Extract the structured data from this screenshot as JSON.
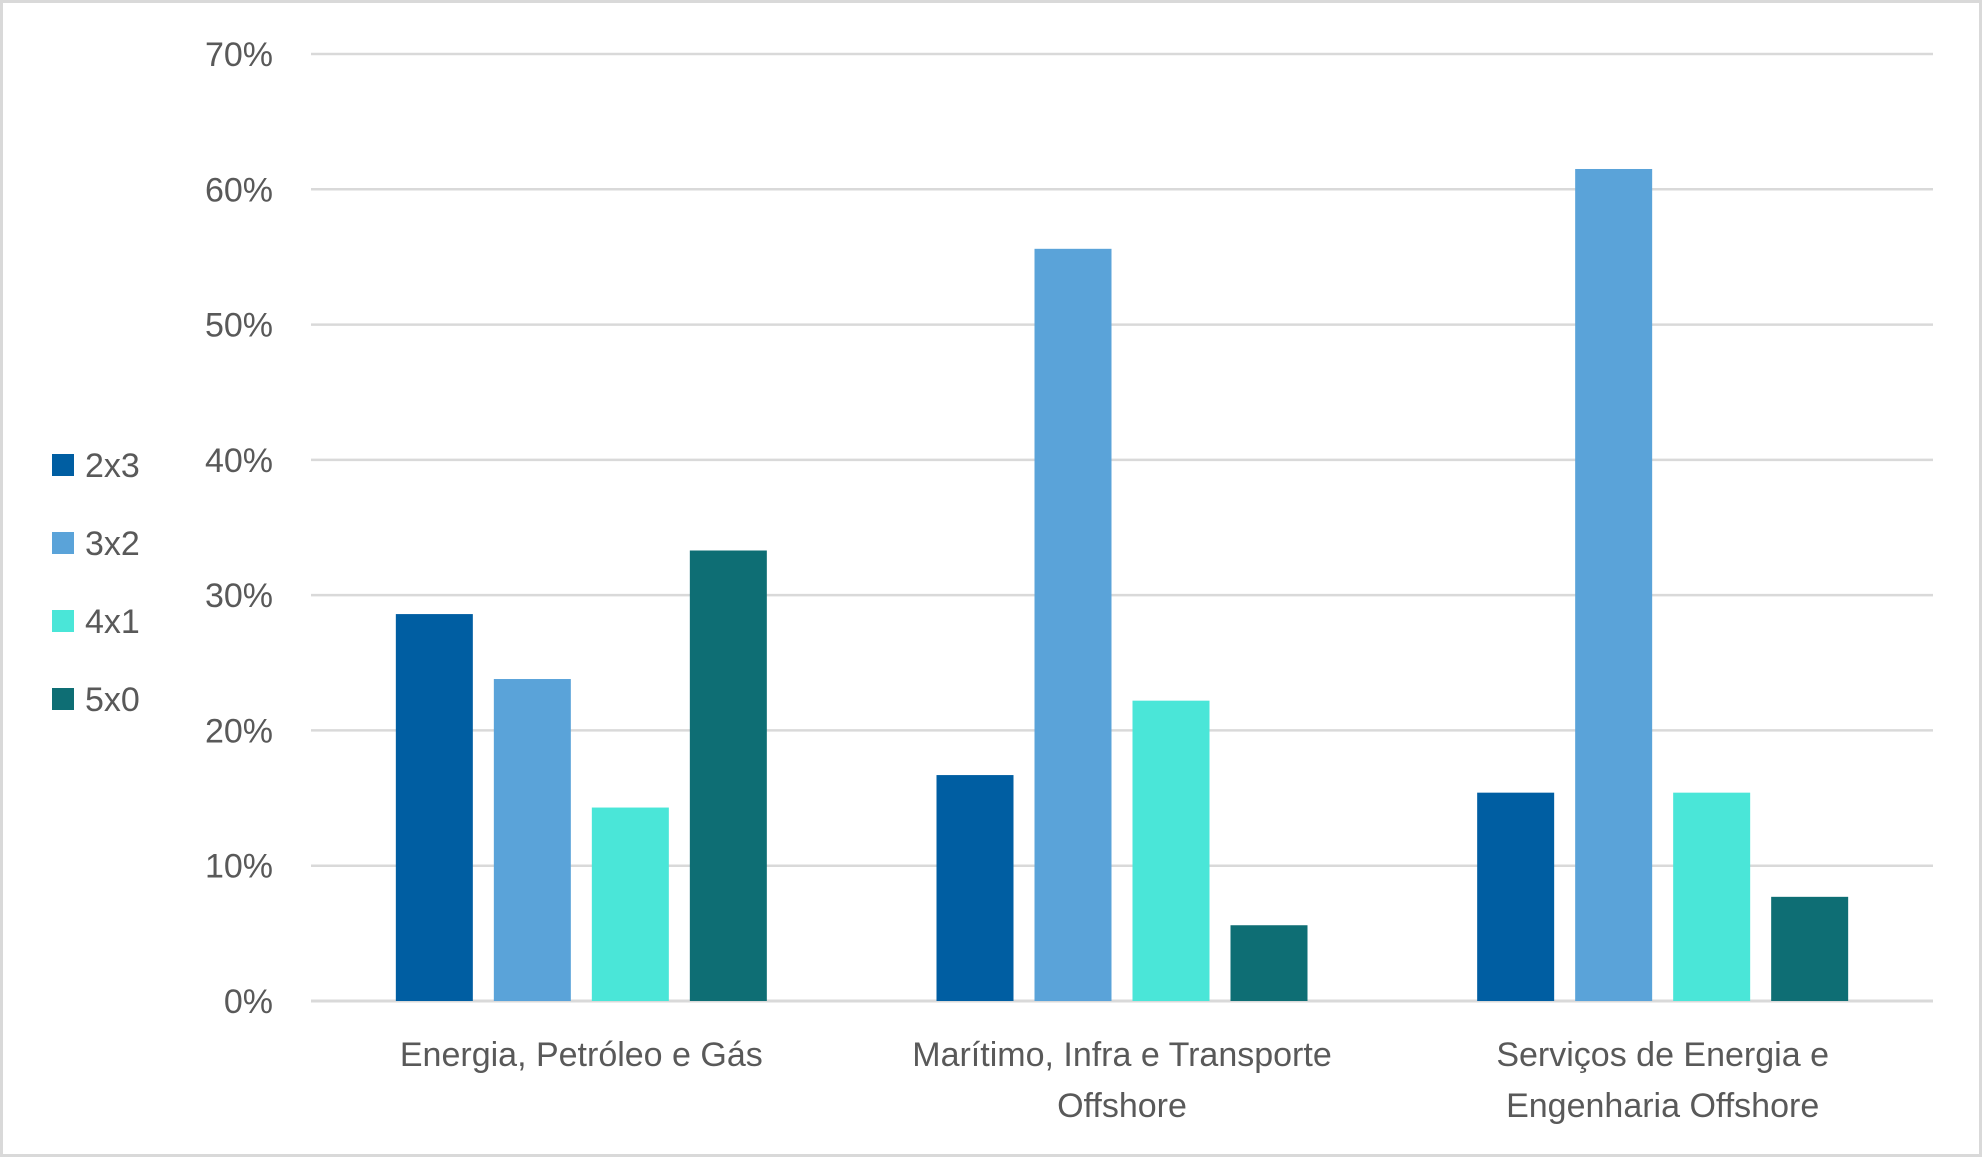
{
  "chart_data": {
    "type": "bar",
    "title": "",
    "xlabel": "",
    "ylabel": "",
    "categories": [
      [
        "Energia, Petróleo e Gás"
      ],
      [
        "Marítimo, Infra e Transporte",
        "Offshore"
      ],
      [
        "Serviços de Energia e",
        "Engenharia Offshore"
      ]
    ],
    "series": [
      {
        "name": "2x3",
        "color": "#005ea2",
        "values": [
          28.6,
          16.7,
          15.4
        ]
      },
      {
        "name": "3x2",
        "color": "#5aa3d9",
        "values": [
          23.8,
          55.6,
          61.5
        ]
      },
      {
        "name": "4x1",
        "color": "#4ae6d8",
        "values": [
          14.3,
          22.2,
          15.4
        ]
      },
      {
        "name": "5x0",
        "color": "#0e6e74",
        "values": [
          33.3,
          5.6,
          7.7
        ]
      }
    ],
    "ylim": [
      0,
      70
    ],
    "yticks": [
      0,
      10,
      20,
      30,
      40,
      50,
      60,
      70
    ],
    "ytick_format": "percent",
    "grid": true,
    "legend_position": "left",
    "colors": {
      "grid": "#d9d9d9",
      "text": "#595959",
      "border": "#d9d9d9"
    }
  }
}
